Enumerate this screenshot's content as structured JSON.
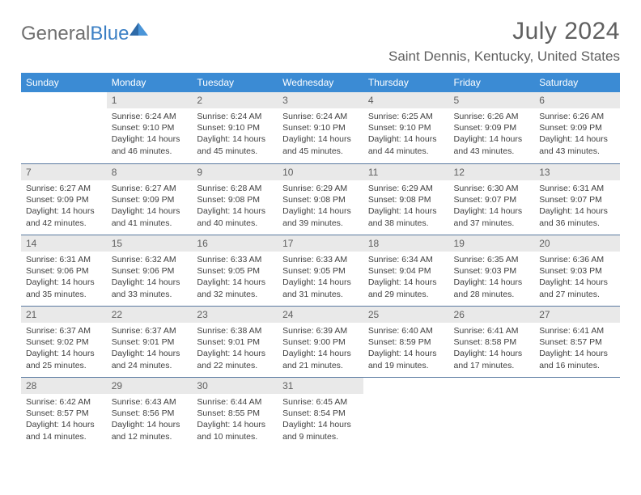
{
  "logo": {
    "word1": "General",
    "word2": "Blue"
  },
  "title": "July 2024",
  "location": "Saint Dennis, Kentucky, United States",
  "colors": {
    "header_bg": "#3b8bd4",
    "header_text": "#ffffff",
    "daybar_bg": "#e9e9e9",
    "daybar_border": "#5a7aa0",
    "text_gray": "#606060",
    "logo_blue": "#3b7fc4"
  },
  "dayNames": [
    "Sunday",
    "Monday",
    "Tuesday",
    "Wednesday",
    "Thursday",
    "Friday",
    "Saturday"
  ],
  "weeks": [
    [
      null,
      {
        "n": "1",
        "sr": "6:24 AM",
        "ss": "9:10 PM",
        "dl": "14 hours and 46 minutes."
      },
      {
        "n": "2",
        "sr": "6:24 AM",
        "ss": "9:10 PM",
        "dl": "14 hours and 45 minutes."
      },
      {
        "n": "3",
        "sr": "6:24 AM",
        "ss": "9:10 PM",
        "dl": "14 hours and 45 minutes."
      },
      {
        "n": "4",
        "sr": "6:25 AM",
        "ss": "9:10 PM",
        "dl": "14 hours and 44 minutes."
      },
      {
        "n": "5",
        "sr": "6:26 AM",
        "ss": "9:09 PM",
        "dl": "14 hours and 43 minutes."
      },
      {
        "n": "6",
        "sr": "6:26 AM",
        "ss": "9:09 PM",
        "dl": "14 hours and 43 minutes."
      }
    ],
    [
      {
        "n": "7",
        "sr": "6:27 AM",
        "ss": "9:09 PM",
        "dl": "14 hours and 42 minutes."
      },
      {
        "n": "8",
        "sr": "6:27 AM",
        "ss": "9:09 PM",
        "dl": "14 hours and 41 minutes."
      },
      {
        "n": "9",
        "sr": "6:28 AM",
        "ss": "9:08 PM",
        "dl": "14 hours and 40 minutes."
      },
      {
        "n": "10",
        "sr": "6:29 AM",
        "ss": "9:08 PM",
        "dl": "14 hours and 39 minutes."
      },
      {
        "n": "11",
        "sr": "6:29 AM",
        "ss": "9:08 PM",
        "dl": "14 hours and 38 minutes."
      },
      {
        "n": "12",
        "sr": "6:30 AM",
        "ss": "9:07 PM",
        "dl": "14 hours and 37 minutes."
      },
      {
        "n": "13",
        "sr": "6:31 AM",
        "ss": "9:07 PM",
        "dl": "14 hours and 36 minutes."
      }
    ],
    [
      {
        "n": "14",
        "sr": "6:31 AM",
        "ss": "9:06 PM",
        "dl": "14 hours and 35 minutes."
      },
      {
        "n": "15",
        "sr": "6:32 AM",
        "ss": "9:06 PM",
        "dl": "14 hours and 33 minutes."
      },
      {
        "n": "16",
        "sr": "6:33 AM",
        "ss": "9:05 PM",
        "dl": "14 hours and 32 minutes."
      },
      {
        "n": "17",
        "sr": "6:33 AM",
        "ss": "9:05 PM",
        "dl": "14 hours and 31 minutes."
      },
      {
        "n": "18",
        "sr": "6:34 AM",
        "ss": "9:04 PM",
        "dl": "14 hours and 29 minutes."
      },
      {
        "n": "19",
        "sr": "6:35 AM",
        "ss": "9:03 PM",
        "dl": "14 hours and 28 minutes."
      },
      {
        "n": "20",
        "sr": "6:36 AM",
        "ss": "9:03 PM",
        "dl": "14 hours and 27 minutes."
      }
    ],
    [
      {
        "n": "21",
        "sr": "6:37 AM",
        "ss": "9:02 PM",
        "dl": "14 hours and 25 minutes."
      },
      {
        "n": "22",
        "sr": "6:37 AM",
        "ss": "9:01 PM",
        "dl": "14 hours and 24 minutes."
      },
      {
        "n": "23",
        "sr": "6:38 AM",
        "ss": "9:01 PM",
        "dl": "14 hours and 22 minutes."
      },
      {
        "n": "24",
        "sr": "6:39 AM",
        "ss": "9:00 PM",
        "dl": "14 hours and 21 minutes."
      },
      {
        "n": "25",
        "sr": "6:40 AM",
        "ss": "8:59 PM",
        "dl": "14 hours and 19 minutes."
      },
      {
        "n": "26",
        "sr": "6:41 AM",
        "ss": "8:58 PM",
        "dl": "14 hours and 17 minutes."
      },
      {
        "n": "27",
        "sr": "6:41 AM",
        "ss": "8:57 PM",
        "dl": "14 hours and 16 minutes."
      }
    ],
    [
      {
        "n": "28",
        "sr": "6:42 AM",
        "ss": "8:57 PM",
        "dl": "14 hours and 14 minutes."
      },
      {
        "n": "29",
        "sr": "6:43 AM",
        "ss": "8:56 PM",
        "dl": "14 hours and 12 minutes."
      },
      {
        "n": "30",
        "sr": "6:44 AM",
        "ss": "8:55 PM",
        "dl": "14 hours and 10 minutes."
      },
      {
        "n": "31",
        "sr": "6:45 AM",
        "ss": "8:54 PM",
        "dl": "14 hours and 9 minutes."
      },
      null,
      null,
      null
    ]
  ],
  "labels": {
    "sunrise": "Sunrise: ",
    "sunset": "Sunset: ",
    "daylight": "Daylight: "
  }
}
